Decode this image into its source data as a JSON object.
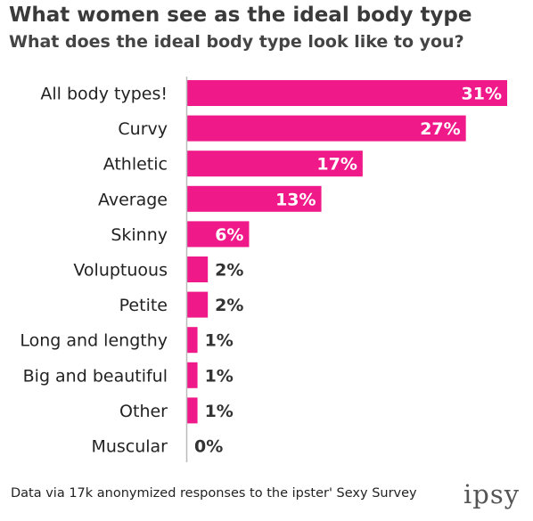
{
  "header": {
    "title": "What women see as the ideal body type",
    "subtitle": "What does the ideal body type look like to you?"
  },
  "footer": {
    "note": "Data via 17k anonymized responses to the ipster' Sexy Survey",
    "logo": "ipsy"
  },
  "colors": {
    "bar": "#f0198a",
    "inside_label": "#ffffff",
    "outside_label": "#333333",
    "axis": "#bbbbbb"
  },
  "chart_data": {
    "type": "bar",
    "orientation": "horizontal",
    "title": "What women see as the ideal body type",
    "subtitle": "What does the ideal body type look like to you?",
    "categories": [
      "All body types!",
      "Curvy",
      "Athletic",
      "Average",
      "Skinny",
      "Voluptuous",
      "Petite",
      "Long and lengthy",
      "Big and beautiful",
      "Other",
      "Muscular"
    ],
    "values": [
      31,
      27,
      17,
      13,
      6,
      2,
      2,
      1,
      1,
      1,
      0
    ],
    "value_labels": [
      "31%",
      "27%",
      "17%",
      "13%",
      "6%",
      "2%",
      "2%",
      "1%",
      "1%",
      "1%",
      "0%"
    ],
    "xlim": [
      0,
      31
    ],
    "grid": false,
    "legend": "none"
  }
}
